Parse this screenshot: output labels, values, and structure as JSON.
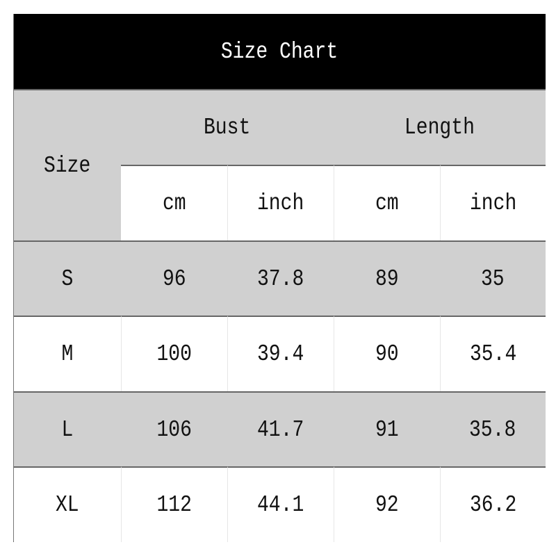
{
  "title": "Size Chart",
  "header": {
    "size": "Size",
    "groups": [
      "Bust",
      "Length"
    ],
    "units": [
      "cm",
      "inch",
      "cm",
      "inch"
    ]
  },
  "rows": [
    {
      "size": "S",
      "values": [
        "96",
        "37.8",
        "89",
        "35"
      ]
    },
    {
      "size": "M",
      "values": [
        "100",
        "39.4",
        "90",
        "35.4"
      ]
    },
    {
      "size": "L",
      "values": [
        "106",
        "41.7",
        "91",
        "35.8"
      ]
    },
    {
      "size": "XL",
      "values": [
        "112",
        "44.1",
        "92",
        "36.2"
      ]
    }
  ],
  "colors": {
    "title_bg": "#000000",
    "title_text": "#ffffff",
    "band": "#d0d0d0",
    "line": "#666666"
  }
}
